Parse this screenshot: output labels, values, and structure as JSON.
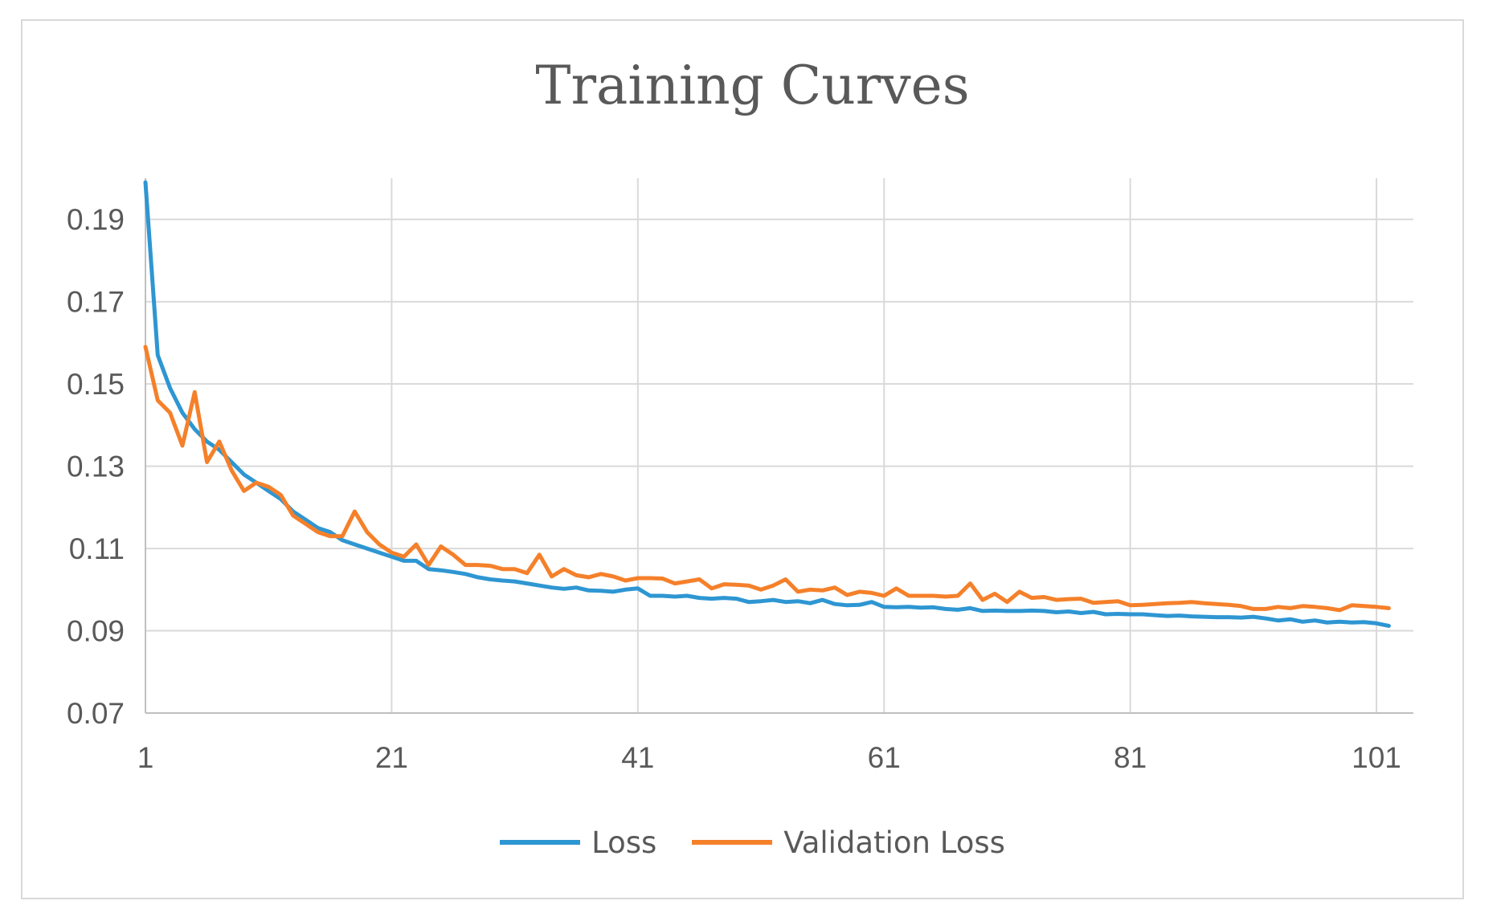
{
  "chart_data": {
    "type": "line",
    "title": "Training Curves",
    "xlabel": "",
    "ylabel": "",
    "xlim": [
      1,
      104
    ],
    "ylim": [
      0.07,
      0.2
    ],
    "x_ticks": [
      1,
      21,
      41,
      61,
      81,
      101
    ],
    "y_ticks": [
      0.07,
      0.09,
      0.11,
      0.13,
      0.15,
      0.17,
      0.19
    ],
    "y_tick_labels": [
      "0.07",
      "0.09",
      "0.11",
      "0.13",
      "0.15",
      "0.17",
      "0.19"
    ],
    "grid": true,
    "legend_position": "bottom",
    "series": [
      {
        "name": "Loss",
        "color": "#2e96d2",
        "values": [
          0.199,
          0.157,
          0.149,
          0.143,
          0.139,
          0.136,
          0.134,
          0.131,
          0.128,
          0.126,
          0.124,
          0.122,
          0.119,
          0.117,
          0.115,
          0.114,
          0.112,
          0.111,
          0.11,
          0.109,
          0.108,
          0.107,
          0.107,
          0.105,
          0.1047,
          0.1043,
          0.1038,
          0.103,
          0.1025,
          0.1022,
          0.102,
          0.1015,
          0.101,
          0.1005,
          0.1002,
          0.1005,
          0.0998,
          0.0997,
          0.0995,
          0.1,
          0.1003,
          0.0985,
          0.0985,
          0.0983,
          0.0985,
          0.098,
          0.0978,
          0.098,
          0.0978,
          0.097,
          0.0972,
          0.0975,
          0.097,
          0.0972,
          0.0967,
          0.0975,
          0.0965,
          0.0962,
          0.0963,
          0.097,
          0.0958,
          0.0957,
          0.0958,
          0.0956,
          0.0957,
          0.0953,
          0.0951,
          0.0955,
          0.0948,
          0.0949,
          0.0948,
          0.0948,
          0.0949,
          0.0948,
          0.0945,
          0.0947,
          0.0943,
          0.0946,
          0.094,
          0.0941,
          0.094,
          0.094,
          0.0938,
          0.0936,
          0.0937,
          0.0935,
          0.0934,
          0.0933,
          0.0933,
          0.0932,
          0.0934,
          0.093,
          0.0925,
          0.0928,
          0.0922,
          0.0925,
          0.092,
          0.0922,
          0.092,
          0.0921,
          0.0918,
          0.0912
        ]
      },
      {
        "name": "Validation Loss",
        "color": "#f5802a",
        "values": [
          0.159,
          0.146,
          0.143,
          0.135,
          0.148,
          0.131,
          0.136,
          0.129,
          0.124,
          0.126,
          0.125,
          0.123,
          0.118,
          0.116,
          0.114,
          0.113,
          0.113,
          0.119,
          0.114,
          0.111,
          0.109,
          0.108,
          0.111,
          0.106,
          0.1105,
          0.1085,
          0.106,
          0.106,
          0.1058,
          0.105,
          0.105,
          0.104,
          0.1085,
          0.1032,
          0.105,
          0.1035,
          0.103,
          0.1038,
          0.1032,
          0.1022,
          0.1028,
          0.1028,
          0.1027,
          0.1015,
          0.102,
          0.1025,
          0.1003,
          0.1013,
          0.1012,
          0.101,
          0.1,
          0.101,
          0.1025,
          0.0995,
          0.1,
          0.0998,
          0.1005,
          0.0987,
          0.0995,
          0.0992,
          0.0985,
          0.1003,
          0.0985,
          0.0985,
          0.0985,
          0.0983,
          0.0985,
          0.1015,
          0.0975,
          0.099,
          0.097,
          0.0995,
          0.098,
          0.0982,
          0.0975,
          0.0977,
          0.0978,
          0.0968,
          0.097,
          0.0972,
          0.0962,
          0.0963,
          0.0965,
          0.0967,
          0.0968,
          0.097,
          0.0967,
          0.0965,
          0.0963,
          0.096,
          0.0953,
          0.0953,
          0.0958,
          0.0955,
          0.096,
          0.0958,
          0.0955,
          0.095,
          0.0962,
          0.096,
          0.0958,
          0.0955
        ]
      }
    ]
  }
}
